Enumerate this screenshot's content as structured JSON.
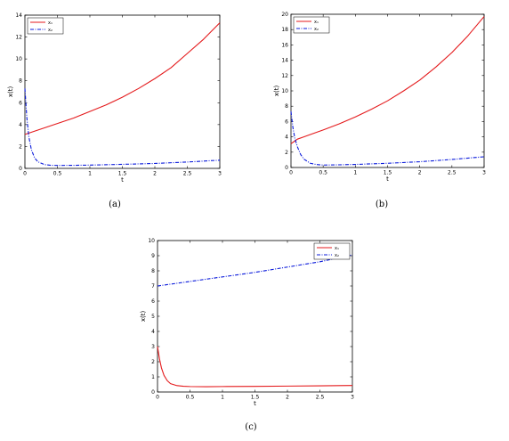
{
  "chart_data": [
    {
      "type": "line",
      "caption": "(a)",
      "xlabel": "t",
      "ylabel": "x(t)",
      "xlim": [
        0,
        3
      ],
      "ylim": [
        0,
        14
      ],
      "xticks": [
        0,
        0.5,
        1,
        1.5,
        2,
        2.5,
        3
      ],
      "yticks": [
        0,
        2,
        4,
        6,
        8,
        10,
        12,
        14
      ],
      "grid": false,
      "legend": "top-left",
      "series": [
        {
          "name": "x₁",
          "color": "#e41a1c",
          "style": "solid",
          "x": [
            0,
            0.25,
            0.5,
            0.75,
            1,
            1.25,
            1.5,
            1.75,
            2,
            2.25,
            2.5,
            2.75,
            3
          ],
          "y": [
            3.1,
            3.6,
            4.1,
            4.6,
            5.2,
            5.8,
            6.5,
            7.3,
            8.2,
            9.2,
            10.5,
            11.8,
            13.3
          ]
        },
        {
          "name": "x₂",
          "color": "#0a1adb",
          "style": "dashdot",
          "x": [
            0,
            0.03,
            0.06,
            0.1,
            0.15,
            0.2,
            0.3,
            0.4,
            0.5,
            0.75,
            1,
            1.5,
            2,
            2.5,
            3
          ],
          "y": [
            7.3,
            4.6,
            2.9,
            1.7,
            0.95,
            0.6,
            0.35,
            0.28,
            0.27,
            0.28,
            0.3,
            0.37,
            0.45,
            0.58,
            0.75
          ]
        }
      ]
    },
    {
      "type": "line",
      "caption": "(b)",
      "xlabel": "t",
      "ylabel": "x(t)",
      "xlim": [
        0,
        3
      ],
      "ylim": [
        0,
        20
      ],
      "xticks": [
        0,
        0.5,
        1,
        1.5,
        2,
        2.5,
        3
      ],
      "yticks": [
        0,
        2,
        4,
        6,
        8,
        10,
        12,
        14,
        16,
        18,
        20
      ],
      "grid": false,
      "legend": "top-left",
      "series": [
        {
          "name": "x₁",
          "color": "#e41a1c",
          "style": "solid",
          "x": [
            0,
            0.05,
            0.1,
            0.2,
            0.3,
            0.5,
            0.75,
            1,
            1.25,
            1.5,
            1.75,
            2,
            2.25,
            2.5,
            2.75,
            3
          ],
          "y": [
            3.1,
            3.4,
            3.7,
            4.0,
            4.3,
            4.9,
            5.7,
            6.6,
            7.6,
            8.7,
            10.0,
            11.4,
            13.1,
            15.0,
            17.2,
            19.7
          ]
        },
        {
          "name": "x₂",
          "color": "#0a1adb",
          "style": "dashdot",
          "x": [
            0,
            0.03,
            0.06,
            0.1,
            0.15,
            0.2,
            0.3,
            0.4,
            0.5,
            0.75,
            1,
            1.5,
            2,
            2.5,
            3
          ],
          "y": [
            7.3,
            5.2,
            3.8,
            2.7,
            1.7,
            1.1,
            0.55,
            0.38,
            0.32,
            0.35,
            0.4,
            0.55,
            0.75,
            1.05,
            1.4
          ]
        }
      ]
    },
    {
      "type": "line",
      "caption": "(c)",
      "xlabel": "t",
      "ylabel": "x(t)",
      "xlim": [
        0,
        3
      ],
      "ylim": [
        0,
        10
      ],
      "xticks": [
        0,
        0.5,
        1,
        1.5,
        2,
        2.5,
        3
      ],
      "yticks": [
        0,
        1,
        2,
        3,
        4,
        5,
        6,
        7,
        8,
        9,
        10
      ],
      "grid": false,
      "legend": "top-right",
      "series": [
        {
          "name": "x₁",
          "color": "#e41a1c",
          "style": "solid",
          "x": [
            0,
            0.03,
            0.06,
            0.1,
            0.15,
            0.2,
            0.3,
            0.4,
            0.5,
            0.75,
            1,
            1.5,
            2,
            2.5,
            3
          ],
          "y": [
            3.0,
            2.2,
            1.6,
            1.1,
            0.75,
            0.55,
            0.42,
            0.38,
            0.36,
            0.35,
            0.36,
            0.37,
            0.39,
            0.41,
            0.43
          ]
        },
        {
          "name": "x₂",
          "color": "#0a1adb",
          "style": "dashdot",
          "x": [
            0,
            0.5,
            1,
            1.5,
            2,
            2.5,
            3
          ],
          "y": [
            7.0,
            7.3,
            7.6,
            7.9,
            8.25,
            8.6,
            9.05
          ]
        }
      ]
    }
  ]
}
